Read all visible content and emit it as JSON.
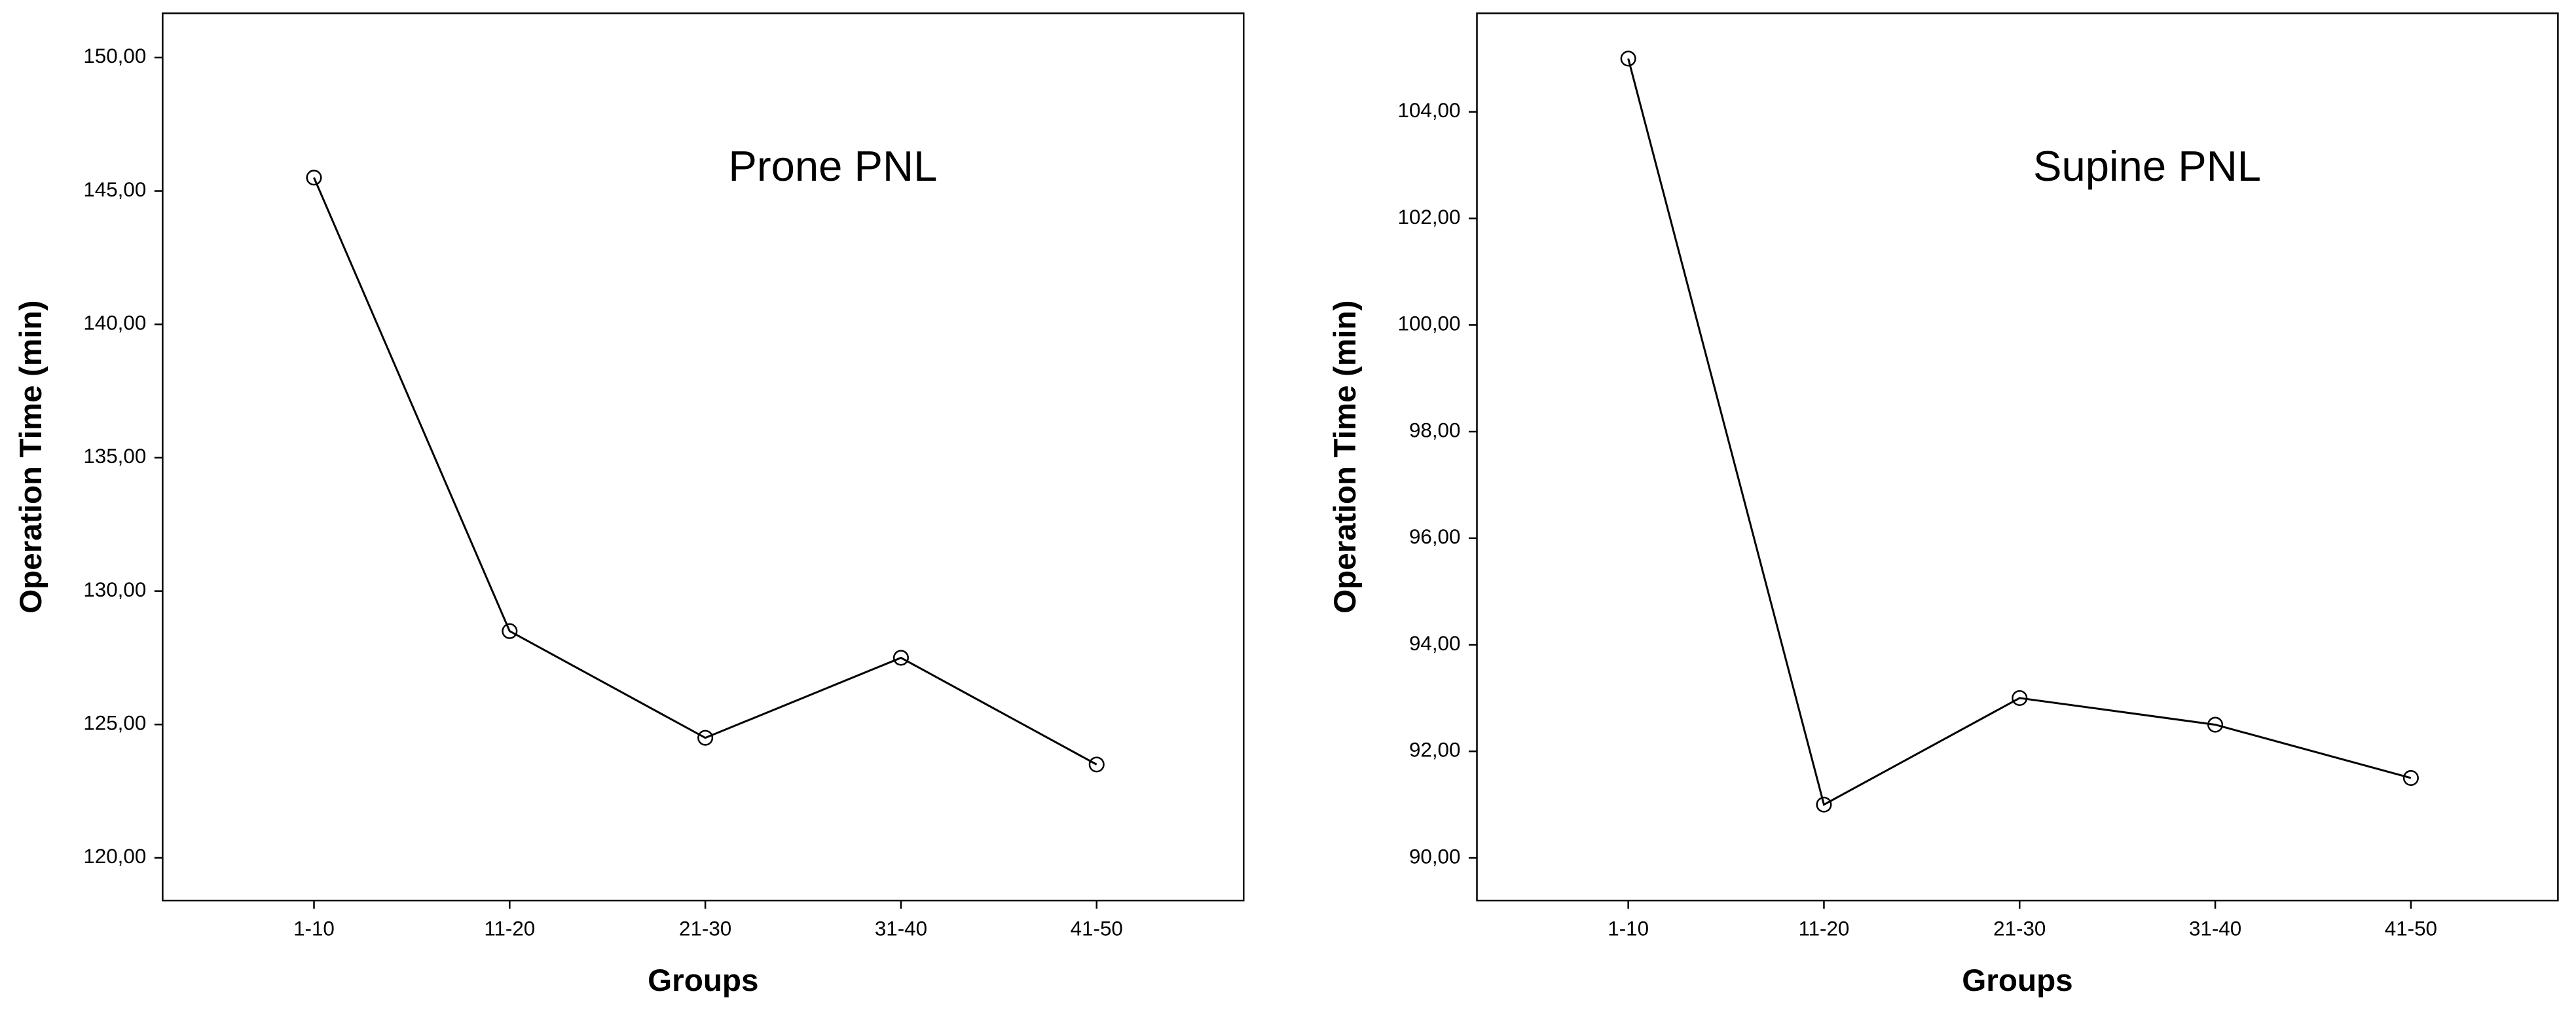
{
  "chart_data": [
    {
      "type": "line",
      "title": "Prone PNL",
      "x_label": "Groups",
      "y_label": "Operation Time (min)",
      "categories": [
        "1-10",
        "11-20",
        "21-30",
        "31-40",
        "41-50"
      ],
      "values": [
        145.5,
        128.5,
        124.5,
        127.5,
        123.5
      ],
      "color": "#000000",
      "ylim": [
        118.4,
        151.66
      ],
      "yticks": [
        {
          "value": 120,
          "label": "120,00"
        },
        {
          "value": 125,
          "label": "125,00"
        },
        {
          "value": 130,
          "label": "130,00"
        },
        {
          "value": 135,
          "label": "135,00"
        },
        {
          "value": 140,
          "label": "140,00"
        },
        {
          "value": 145,
          "label": "145,00"
        },
        {
          "value": 150,
          "label": "150,00"
        }
      ]
    },
    {
      "type": "line",
      "title": "Supine PNL",
      "x_label": "Groups",
      "y_label": "Operation Time (min)",
      "categories": [
        "1-10",
        "11-20",
        "21-30",
        "31-40",
        "41-50"
      ],
      "values": [
        105,
        91,
        93,
        92.5,
        91.5
      ],
      "color": "#000000",
      "ylim": [
        89.2,
        105.85
      ],
      "yticks": [
        {
          "value": 90,
          "label": "90,00"
        },
        {
          "value": 92,
          "label": "92,00"
        },
        {
          "value": 94,
          "label": "94,00"
        },
        {
          "value": 96,
          "label": "96,00"
        },
        {
          "value": 98,
          "label": "98,00"
        },
        {
          "value": 100,
          "label": "100,00"
        },
        {
          "value": 102,
          "label": "102,00"
        },
        {
          "value": 104,
          "label": "104,00"
        }
      ]
    }
  ]
}
